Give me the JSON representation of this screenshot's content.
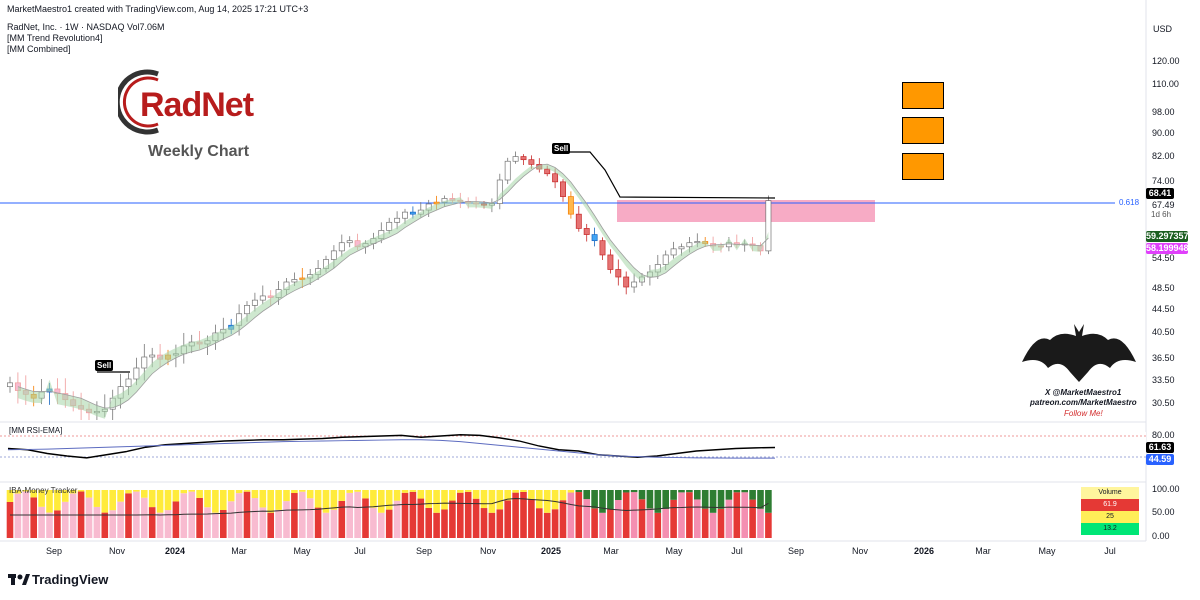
{
  "header": {
    "created_by": "MarketMaestro1 created with TradingView.com, Aug 14, 2025 17:21 UTC+3",
    "symbol_line": "RadNet, Inc. · 1W · NASDAQ  Vol7.06M",
    "indicator1": "[MM Trend Revolution4]",
    "indicator2": "[MM Combined]"
  },
  "currency": "USD",
  "logo_text": "RadNet",
  "chart_caption": "Weekly Chart",
  "sell_label": "Sell",
  "fib_label": "0.618",
  "price_axis": [
    "120.00",
    "110.00",
    "98.00",
    "90.00",
    "82.00",
    "74.00",
    "67.49",
    "54.50",
    "48.50",
    "44.50",
    "40.50",
    "36.50",
    "33.50",
    "30.50"
  ],
  "price_tags": {
    "last": {
      "value": "68.41",
      "color": "#000000"
    },
    "timer": "1d 6h",
    "green": {
      "value": "59.297357",
      "color": "#1b5e20"
    },
    "pink": {
      "value": "58.199948",
      "color": "#e040fb"
    }
  },
  "rsi_pane": {
    "title": "[MM RSI-EMA]",
    "axis": [
      "80.00"
    ],
    "tag_rsi": {
      "value": "61.63",
      "color": "#000000"
    },
    "tag_ema": {
      "value": "44.59",
      "color": "#2962ff"
    }
  },
  "money_pane": {
    "title": "IBA-Money Tracker",
    "axis": [
      "100.00",
      "50.00",
      "0.00"
    ],
    "volume_table": [
      "Volume",
      "61.9",
      "25",
      "13.2"
    ]
  },
  "watermark": {
    "line1": "X @MarketMaestro1",
    "line2": "patreon.com/MarketMaestro",
    "line3": "Follow Me!"
  },
  "time_axis": [
    "Sep",
    "Nov",
    "2024",
    "Mar",
    "May",
    "Jul",
    "Sep",
    "Nov",
    "2025",
    "Mar",
    "May",
    "Jul",
    "Sep",
    "Nov",
    "2026",
    "Mar",
    "May",
    "Jul"
  ],
  "footer_brand": "TradingView",
  "chart_data": {
    "type": "candlestick",
    "title": "RadNet, Inc. · 1W · NASDAQ",
    "subtitle": "Weekly Chart",
    "ylim": [
      28,
      125
    ],
    "fib_level": 67.49,
    "resistance_zone": [
      61.5,
      68.4
    ],
    "last_price": 68.41,
    "closes": [
      33,
      32,
      31.5,
      31,
      31.8,
      32.2,
      31.6,
      30.8,
      30,
      29.5,
      29,
      29.2,
      29.5,
      31,
      32.5,
      33.5,
      35,
      36.5,
      36.8,
      36.2,
      36.8,
      37,
      38.2,
      38.8,
      38.5,
      39,
      40.2,
      40.8,
      41.5,
      43.5,
      45,
      46,
      46.8,
      46.5,
      48,
      49.5,
      50,
      50.3,
      51,
      52.2,
      54,
      56,
      58,
      58.5,
      57,
      57.8,
      59,
      61,
      63,
      64,
      65.5,
      65,
      66,
      67.5,
      68,
      69,
      68.5,
      68.2,
      67.8,
      67.5,
      67.2,
      67.6,
      74,
      80,
      81.5,
      80.5,
      79,
      77.5,
      76,
      73.5,
      69.5,
      65,
      61.5,
      60,
      58.5,
      55,
      52,
      50.5,
      48.5,
      49.5,
      50.5,
      51.5,
      53,
      55,
      56.5,
      57,
      58,
      58.3,
      57.8,
      57.2,
      57,
      58,
      57.5,
      57.7,
      57.3,
      56,
      68.4
    ],
    "rsi": [
      60,
      58,
      52,
      48,
      45,
      50,
      55,
      62,
      66,
      68,
      70,
      72,
      73,
      74,
      74,
      75,
      76,
      78,
      79,
      80,
      81,
      78,
      80,
      82,
      81,
      77,
      72,
      64,
      58,
      56,
      50,
      48,
      46,
      48,
      52,
      56,
      58,
      60,
      61,
      61.6
    ],
    "rsi_ema": [
      58,
      58.5,
      59,
      60,
      61,
      62,
      63,
      64,
      65,
      66,
      67,
      68,
      69,
      70,
      71,
      71.5,
      72,
      72.5,
      73,
      73.5,
      74,
      74,
      73,
      71,
      68,
      65,
      62,
      59,
      56,
      53,
      50,
      48,
      47,
      46,
      45.5,
      45,
      44.8,
      44.7,
      44.6,
      44.6
    ],
    "volume_table": [
      "Volume",
      "61.9",
      "25",
      "13.2"
    ]
  }
}
